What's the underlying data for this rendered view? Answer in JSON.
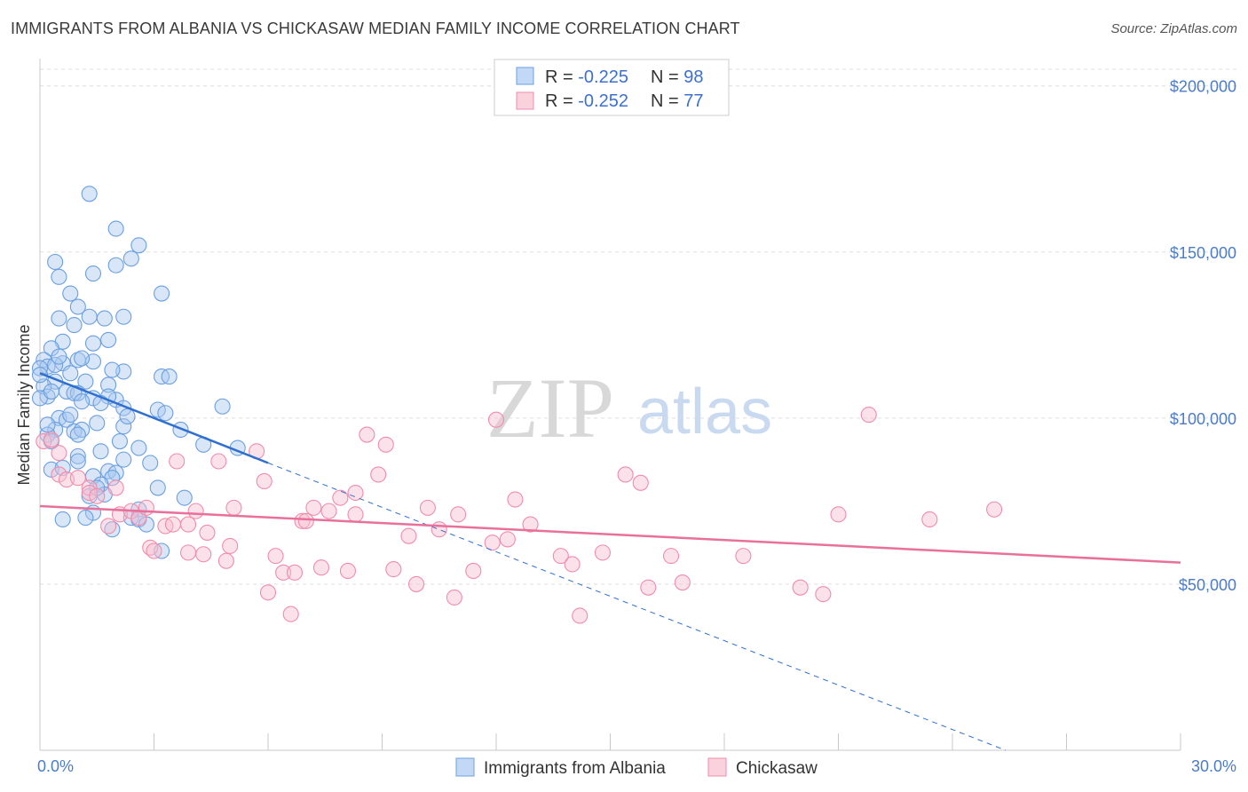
{
  "header": {
    "title": "IMMIGRANTS FROM ALBANIA VS CHICKASAW MEDIAN FAMILY INCOME CORRELATION CHART",
    "source": "Source: ZipAtlas.com"
  },
  "watermark": {
    "zip": "ZIP",
    "atlas": "atlas"
  },
  "colors": {
    "blue": "#6a9fe0",
    "blue_fill": "#a8c8f0",
    "blue_line": "#2f6fd0",
    "pink": "#f08cab",
    "pink_fill": "#f6bfd0",
    "pink_line": "#e8709a",
    "tick": "#4a7cc9",
    "grid": "#dddddd"
  },
  "chart_data": {
    "type": "scatter",
    "ylabel": "Median Family Income",
    "xlim": [
      0,
      30
    ],
    "ylim": [
      0,
      205000
    ],
    "y_ticks": [
      {
        "value": 50000,
        "label": "$50,000"
      },
      {
        "value": 100000,
        "label": "$100,000"
      },
      {
        "value": 150000,
        "label": "$150,000"
      },
      {
        "value": 200000,
        "label": "$200,000"
      }
    ],
    "x_tick_labels": {
      "min": "0.0%",
      "max": "30.0%"
    },
    "grid": true,
    "legend": [
      {
        "r_label": "R = ",
        "r_value": "-0.225",
        "n_label": "N = ",
        "n_value": "98"
      },
      {
        "r_label": "R = ",
        "r_value": "-0.252",
        "n_label": "N = ",
        "n_value": "77"
      }
    ],
    "series": [
      {
        "name": "Immigrants from Albania",
        "trend": {
          "x": [
            0,
            6.0
          ],
          "y": [
            113500,
            86500
          ],
          "dashed_to": [
            25.4,
            0
          ]
        },
        "points": [
          [
            1.3,
            167500
          ],
          [
            2.0,
            157000
          ],
          [
            2.6,
            152000
          ],
          [
            0.4,
            147000
          ],
          [
            2.4,
            148000
          ],
          [
            1.4,
            143500
          ],
          [
            0.5,
            142500
          ],
          [
            2.0,
            146000
          ],
          [
            3.2,
            137500
          ],
          [
            0.8,
            137500
          ],
          [
            1.0,
            133500
          ],
          [
            2.2,
            130500
          ],
          [
            0.5,
            130000
          ],
          [
            1.7,
            130000
          ],
          [
            1.3,
            130500
          ],
          [
            0.9,
            128000
          ],
          [
            1.8,
            123500
          ],
          [
            0.6,
            123000
          ],
          [
            0.3,
            121000
          ],
          [
            1.4,
            122500
          ],
          [
            0.1,
            117500
          ],
          [
            0.2,
            115500
          ],
          [
            0.6,
            116500
          ],
          [
            1.0,
            117500
          ],
          [
            1.4,
            117000
          ],
          [
            0.4,
            116000
          ],
          [
            0.8,
            113500
          ],
          [
            2.2,
            114000
          ],
          [
            1.9,
            114500
          ],
          [
            3.2,
            112500
          ],
          [
            3.4,
            112500
          ],
          [
            0.0,
            115000
          ],
          [
            0.4,
            111000
          ],
          [
            1.2,
            111000
          ],
          [
            1.8,
            110000
          ],
          [
            0.1,
            109500
          ],
          [
            0.7,
            108000
          ],
          [
            1.0,
            107500
          ],
          [
            2.0,
            105500
          ],
          [
            1.4,
            106000
          ],
          [
            0.2,
            106500
          ],
          [
            1.8,
            106500
          ],
          [
            0.9,
            107500
          ],
          [
            1.1,
            105000
          ],
          [
            2.2,
            103000
          ],
          [
            3.1,
            102500
          ],
          [
            4.8,
            103500
          ],
          [
            0.0,
            106000
          ],
          [
            0.5,
            100000
          ],
          [
            0.7,
            99500
          ],
          [
            3.3,
            101500
          ],
          [
            1.5,
            98500
          ],
          [
            2.2,
            97500
          ],
          [
            0.4,
            96500
          ],
          [
            0.9,
            96000
          ],
          [
            1.1,
            96500
          ],
          [
            3.7,
            96500
          ],
          [
            0.2,
            95000
          ],
          [
            1.0,
            95000
          ],
          [
            0.3,
            93000
          ],
          [
            2.1,
            93000
          ],
          [
            4.3,
            92000
          ],
          [
            2.6,
            91000
          ],
          [
            5.2,
            91000
          ],
          [
            1.6,
            90000
          ],
          [
            1.0,
            88500
          ],
          [
            2.2,
            87500
          ],
          [
            2.9,
            86500
          ],
          [
            1.0,
            87000
          ],
          [
            0.3,
            84500
          ],
          [
            0.6,
            85000
          ],
          [
            1.8,
            84000
          ],
          [
            2.0,
            83500
          ],
          [
            1.4,
            82500
          ],
          [
            1.9,
            82000
          ],
          [
            1.6,
            80000
          ],
          [
            3.1,
            79000
          ],
          [
            1.7,
            77000
          ],
          [
            1.3,
            76500
          ],
          [
            3.8,
            76000
          ],
          [
            1.4,
            71500
          ],
          [
            2.6,
            72500
          ],
          [
            2.4,
            70000
          ],
          [
            2.6,
            69500
          ],
          [
            1.2,
            70000
          ],
          [
            0.6,
            69500
          ],
          [
            1.9,
            66500
          ],
          [
            3.2,
            60000
          ],
          [
            0.0,
            113000
          ],
          [
            0.3,
            108000
          ],
          [
            0.8,
            101000
          ],
          [
            1.6,
            104500
          ],
          [
            2.3,
            100500
          ],
          [
            0.5,
            118500
          ],
          [
            1.1,
            118000
          ],
          [
            2.8,
            68000
          ],
          [
            1.5,
            79000
          ],
          [
            0.2,
            98000
          ]
        ]
      },
      {
        "name": "Chickasaw",
        "trend": {
          "x": [
            0,
            30
          ],
          "y": [
            73500,
            56500
          ]
        },
        "points": [
          [
            0.1,
            93000
          ],
          [
            0.3,
            93500
          ],
          [
            0.5,
            89500
          ],
          [
            0.5,
            83000
          ],
          [
            0.7,
            81500
          ],
          [
            1.0,
            82000
          ],
          [
            1.3,
            79000
          ],
          [
            1.3,
            77500
          ],
          [
            1.5,
            76500
          ],
          [
            1.8,
            67500
          ],
          [
            2.0,
            79000
          ],
          [
            2.1,
            71000
          ],
          [
            2.4,
            72000
          ],
          [
            2.6,
            70000
          ],
          [
            2.8,
            73000
          ],
          [
            2.9,
            61000
          ],
          [
            3.0,
            60000
          ],
          [
            3.3,
            67500
          ],
          [
            3.5,
            68000
          ],
          [
            3.6,
            87000
          ],
          [
            3.9,
            68000
          ],
          [
            3.9,
            59500
          ],
          [
            4.1,
            72000
          ],
          [
            4.3,
            59000
          ],
          [
            4.4,
            65500
          ],
          [
            4.7,
            87000
          ],
          [
            4.9,
            57000
          ],
          [
            5.0,
            61500
          ],
          [
            5.1,
            73000
          ],
          [
            5.7,
            90000
          ],
          [
            5.9,
            81000
          ],
          [
            6.0,
            47500
          ],
          [
            6.2,
            58500
          ],
          [
            6.4,
            53500
          ],
          [
            6.6,
            41000
          ],
          [
            6.7,
            53500
          ],
          [
            6.9,
            69000
          ],
          [
            7.0,
            69000
          ],
          [
            7.2,
            73000
          ],
          [
            7.4,
            55000
          ],
          [
            7.6,
            72000
          ],
          [
            7.9,
            76000
          ],
          [
            8.1,
            54000
          ],
          [
            8.3,
            77500
          ],
          [
            8.3,
            71000
          ],
          [
            8.6,
            95000
          ],
          [
            8.9,
            83000
          ],
          [
            9.1,
            92000
          ],
          [
            9.3,
            54500
          ],
          [
            9.7,
            64500
          ],
          [
            9.9,
            50000
          ],
          [
            10.2,
            73000
          ],
          [
            10.5,
            66500
          ],
          [
            10.9,
            46000
          ],
          [
            11.0,
            71000
          ],
          [
            11.4,
            54000
          ],
          [
            11.9,
            62500
          ],
          [
            12.0,
            99500
          ],
          [
            12.3,
            63500
          ],
          [
            12.5,
            75500
          ],
          [
            12.9,
            68000
          ],
          [
            13.7,
            58500
          ],
          [
            14.0,
            56000
          ],
          [
            14.2,
            40500
          ],
          [
            14.8,
            59500
          ],
          [
            15.4,
            83000
          ],
          [
            15.8,
            80500
          ],
          [
            16.0,
            49000
          ],
          [
            16.6,
            58500
          ],
          [
            16.9,
            50500
          ],
          [
            18.5,
            58500
          ],
          [
            20.0,
            49000
          ],
          [
            20.6,
            47000
          ],
          [
            21.0,
            71000
          ],
          [
            21.8,
            101000
          ],
          [
            23.4,
            69500
          ],
          [
            25.1,
            72500
          ]
        ]
      }
    ]
  }
}
